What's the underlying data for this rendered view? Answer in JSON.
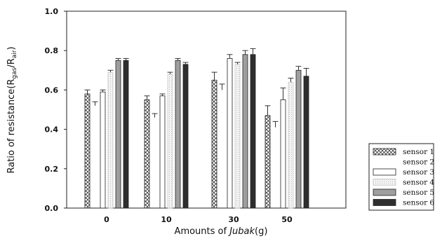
{
  "chart_data": {
    "type": "bar",
    "title": "",
    "ylabel": "Ratio of resistance(R",
    "ylabel_sub1": "gas",
    "ylabel_mid": "/R",
    "ylabel_sub2": "air",
    "ylabel_end": ")",
    "xlabel_prefix": "Amounts of ",
    "xlabel_italic": "Jubak",
    "xlabel_suffix": "(g)",
    "categories": [
      "0",
      "10",
      "30",
      "50"
    ],
    "ylim": [
      0.0,
      1.0
    ],
    "yticks": [
      "0.0",
      "0.2",
      "0.4",
      "0.6",
      "0.8",
      "1.0"
    ],
    "grid": false,
    "legend_position": "bottom-right",
    "series": [
      {
        "name": "sensor 1",
        "values": [
          0.58,
          0.55,
          0.65,
          0.47
        ],
        "errors": [
          0.02,
          0.02,
          0.04,
          0.05
        ],
        "pattern": "crosshatch",
        "color": "#ffffff"
      },
      {
        "name": "sensor 2",
        "values": [
          0.52,
          0.46,
          0.6,
          0.41
        ],
        "errors": [
          0.02,
          0.02,
          0.03,
          0.03
        ],
        "pattern": "none",
        "color": "#ffffff"
      },
      {
        "name": "sensor 3",
        "values": [
          0.59,
          0.57,
          0.76,
          0.55
        ],
        "errors": [
          0.01,
          0.01,
          0.02,
          0.06
        ],
        "pattern": "solid",
        "color": "#ffffff"
      },
      {
        "name": "sensor 4",
        "values": [
          0.69,
          0.68,
          0.73,
          0.64
        ],
        "errors": [
          0.01,
          0.01,
          0.01,
          0.02
        ],
        "pattern": "dotted",
        "color": "#e8e8e8"
      },
      {
        "name": "sensor 5",
        "values": [
          0.75,
          0.75,
          0.78,
          0.7
        ],
        "errors": [
          0.01,
          0.01,
          0.02,
          0.02
        ],
        "pattern": "solid",
        "color": "#9e9e9e"
      },
      {
        "name": "sensor 6",
        "values": [
          0.75,
          0.73,
          0.78,
          0.67
        ],
        "errors": [
          0.01,
          0.01,
          0.03,
          0.04
        ],
        "pattern": "solid",
        "color": "#2e2e2e"
      }
    ]
  }
}
